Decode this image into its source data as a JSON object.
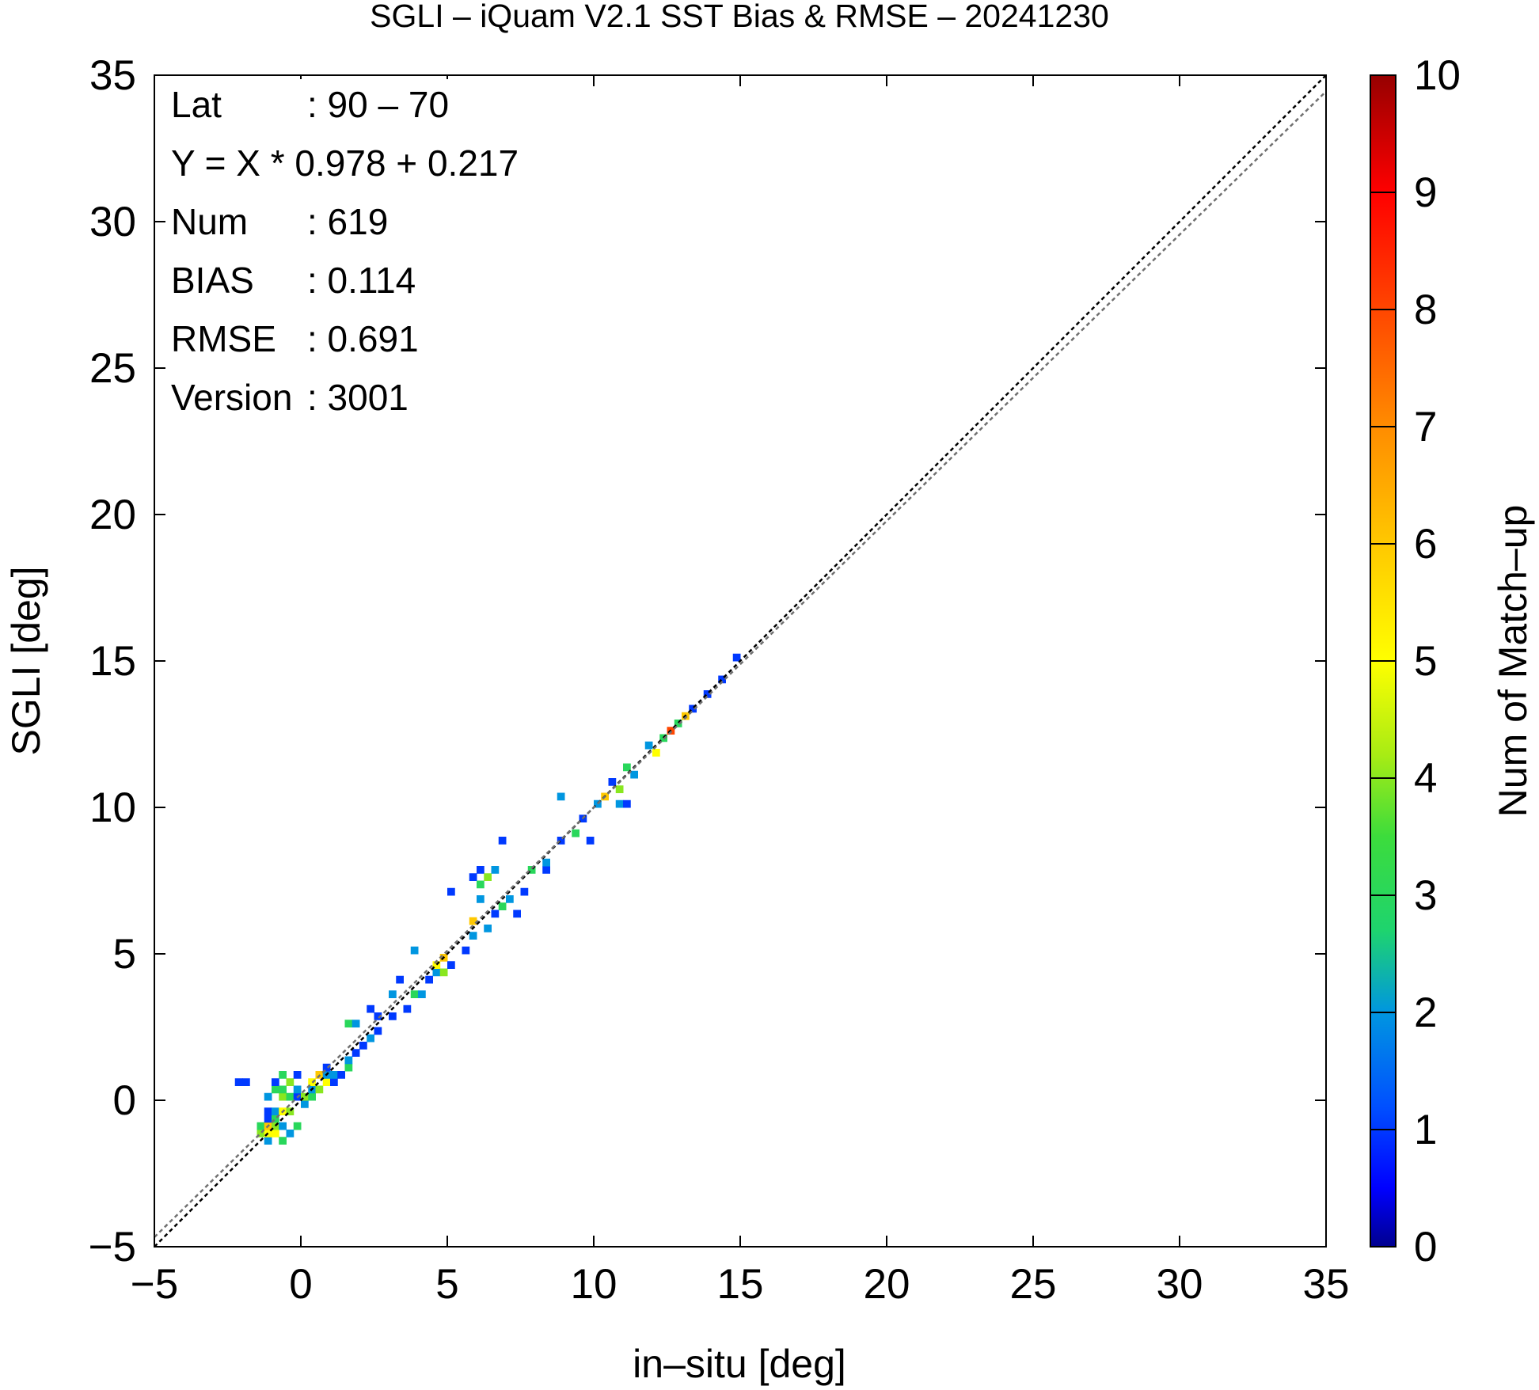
{
  "chart_data": {
    "type": "heatmap",
    "title": "SGLI – iQuam V2.1 SST Bias & RMSE  – 20241230",
    "xlabel": "in–situ [deg]",
    "ylabel": "SGLI [deg]",
    "xlim": [
      -5,
      35
    ],
    "ylim": [
      -5,
      35
    ],
    "x_ticks": [
      -5,
      0,
      5,
      10,
      15,
      20,
      25,
      30,
      35
    ],
    "x_tick_labels": [
      "−5",
      "0",
      "5",
      "10",
      "15",
      "20",
      "25",
      "30",
      "35"
    ],
    "y_ticks": [
      -5,
      0,
      5,
      10,
      15,
      20,
      25,
      30,
      35
    ],
    "y_tick_labels": [
      "−5",
      "0",
      "5",
      "10",
      "15",
      "20",
      "25",
      "30",
      "35"
    ],
    "grid": false,
    "bin_size": 0.25,
    "colorbar": {
      "label": "Num of Match–up",
      "min": 0,
      "max": 10,
      "ticks": [
        0,
        1,
        2,
        3,
        4,
        5,
        6,
        7,
        8,
        9,
        10
      ],
      "tick_labels": [
        "0",
        "1",
        "2",
        "3",
        "4",
        "5",
        "6",
        "7",
        "8",
        "9",
        "10"
      ],
      "colormap": "jet"
    },
    "reference_lines": [
      {
        "name": "1:1",
        "slope": 1.0,
        "intercept": 0.0,
        "color": "#000000",
        "dash": "dotted"
      },
      {
        "name": "fit",
        "slope": 0.978,
        "intercept": 0.217,
        "color": "#707070",
        "dash": "dotted"
      }
    ],
    "stats": [
      {
        "label": "Lat",
        "value": ": 90 – 70"
      },
      {
        "label": "Y = X * 0.978 + 0.217",
        "value": ""
      },
      {
        "label": "Num",
        "value": ": 619"
      },
      {
        "label": "BIAS",
        "value": ": 0.114"
      },
      {
        "label": "RMSE",
        "value": ": 0.691"
      },
      {
        "label": "Version",
        "value": ": 3001"
      }
    ],
    "cells": [
      [
        -2.25,
        0.5,
        1
      ],
      [
        -2.0,
        0.5,
        1
      ],
      [
        -1.5,
        -1.25,
        4
      ],
      [
        -1.5,
        -1.0,
        3
      ],
      [
        -1.25,
        -1.5,
        2
      ],
      [
        -1.25,
        -1.25,
        5
      ],
      [
        -1.25,
        -1.0,
        6
      ],
      [
        -1.25,
        -0.75,
        1
      ],
      [
        -1.25,
        -0.5,
        1
      ],
      [
        -1.25,
        0.0,
        2
      ],
      [
        -1.0,
        -1.25,
        5
      ],
      [
        -1.0,
        -1.0,
        4
      ],
      [
        -1.0,
        -0.75,
        3
      ],
      [
        -1.0,
        -0.5,
        2
      ],
      [
        -1.0,
        0.25,
        3
      ],
      [
        -1.0,
        0.5,
        1
      ],
      [
        -0.75,
        -1.5,
        3
      ],
      [
        -0.75,
        -1.0,
        2
      ],
      [
        -0.75,
        -0.5,
        5
      ],
      [
        -0.75,
        0.0,
        4
      ],
      [
        -0.75,
        0.25,
        3
      ],
      [
        -0.75,
        0.75,
        3
      ],
      [
        -0.5,
        -1.25,
        2
      ],
      [
        -0.5,
        -0.5,
        4
      ],
      [
        -0.5,
        0.0,
        3
      ],
      [
        -0.5,
        0.5,
        4
      ],
      [
        -0.25,
        -1.0,
        3
      ],
      [
        -0.25,
        0.0,
        1
      ],
      [
        -0.25,
        0.25,
        2
      ],
      [
        -0.25,
        0.75,
        1
      ],
      [
        0.0,
        -0.25,
        2
      ],
      [
        0.0,
        0.0,
        4
      ],
      [
        0.25,
        0.0,
        3
      ],
      [
        0.25,
        0.25,
        2
      ],
      [
        0.25,
        0.5,
        5
      ],
      [
        0.5,
        0.25,
        4
      ],
      [
        0.5,
        0.75,
        6
      ],
      [
        0.75,
        0.5,
        5
      ],
      [
        0.75,
        0.75,
        2
      ],
      [
        0.75,
        1.0,
        1
      ],
      [
        1.0,
        0.5,
        1
      ],
      [
        1.0,
        0.75,
        2
      ],
      [
        1.25,
        0.75,
        1
      ],
      [
        1.5,
        1.0,
        3
      ],
      [
        1.5,
        1.25,
        2
      ],
      [
        1.5,
        2.5,
        3
      ],
      [
        1.75,
        1.5,
        1
      ],
      [
        1.75,
        2.5,
        2
      ],
      [
        2.0,
        1.75,
        1
      ],
      [
        2.25,
        2.0,
        2
      ],
      [
        2.25,
        3.0,
        1
      ],
      [
        2.5,
        2.25,
        1
      ],
      [
        2.5,
        2.75,
        1
      ],
      [
        3.0,
        3.5,
        2
      ],
      [
        3.0,
        2.75,
        1
      ],
      [
        3.25,
        4.0,
        1
      ],
      [
        3.5,
        3.0,
        1
      ],
      [
        3.75,
        5.0,
        2
      ],
      [
        3.75,
        3.5,
        3
      ],
      [
        4.0,
        3.5,
        2
      ],
      [
        4.25,
        4.0,
        1
      ],
      [
        4.5,
        4.25,
        2
      ],
      [
        4.5,
        4.5,
        5
      ],
      [
        4.75,
        4.25,
        4
      ],
      [
        4.75,
        4.75,
        6
      ],
      [
        5.0,
        4.5,
        1
      ],
      [
        5.0,
        7.0,
        1
      ],
      [
        5.5,
        5.0,
        1
      ],
      [
        5.75,
        5.5,
        2
      ],
      [
        5.75,
        6.0,
        6
      ],
      [
        5.75,
        7.5,
        1
      ],
      [
        6.0,
        6.75,
        2
      ],
      [
        6.0,
        7.25,
        3
      ],
      [
        6.0,
        7.75,
        1
      ],
      [
        6.25,
        5.75,
        2
      ],
      [
        6.25,
        7.5,
        4
      ],
      [
        6.5,
        6.25,
        1
      ],
      [
        6.5,
        7.75,
        2
      ],
      [
        6.75,
        6.5,
        3
      ],
      [
        6.75,
        8.75,
        1
      ],
      [
        7.0,
        6.75,
        2
      ],
      [
        7.25,
        6.25,
        1
      ],
      [
        7.5,
        7.0,
        1
      ],
      [
        7.75,
        7.75,
        3
      ],
      [
        8.25,
        7.75,
        1
      ],
      [
        8.25,
        8.0,
        2
      ],
      [
        8.75,
        10.25,
        2
      ],
      [
        8.75,
        8.75,
        1
      ],
      [
        9.25,
        9.0,
        3
      ],
      [
        9.5,
        9.5,
        1
      ],
      [
        9.75,
        8.75,
        1
      ],
      [
        10.0,
        10.0,
        2
      ],
      [
        10.25,
        10.25,
        6
      ],
      [
        10.5,
        10.75,
        1
      ],
      [
        10.75,
        10.5,
        4
      ],
      [
        10.75,
        10.0,
        2
      ],
      [
        11.0,
        11.25,
        3
      ],
      [
        11.0,
        10.0,
        1
      ],
      [
        11.25,
        11.0,
        2
      ],
      [
        11.75,
        12.0,
        2
      ],
      [
        12.0,
        11.75,
        5
      ],
      [
        12.25,
        12.25,
        3
      ],
      [
        12.5,
        12.5,
        8
      ],
      [
        12.75,
        12.75,
        3
      ],
      [
        13.0,
        13.0,
        6
      ],
      [
        13.25,
        13.25,
        1
      ],
      [
        13.75,
        13.75,
        1
      ],
      [
        14.25,
        14.25,
        1
      ],
      [
        14.75,
        15.0,
        1
      ]
    ]
  }
}
